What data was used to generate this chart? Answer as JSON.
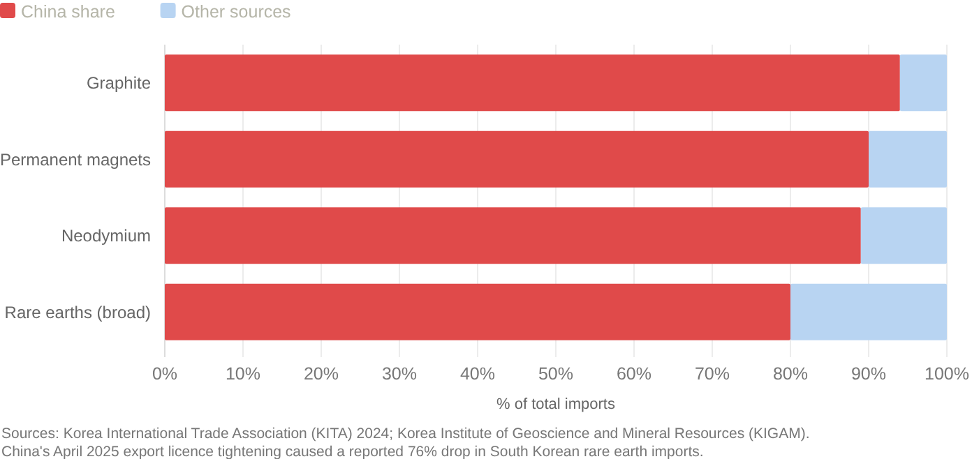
{
  "chart_data": {
    "type": "bar",
    "orientation": "horizontal",
    "stacked": true,
    "categories": [
      "Graphite",
      "Permanent magnets",
      "Neodymium",
      "Rare earths (broad)"
    ],
    "series": [
      {
        "name": "China share",
        "color": "#e04a4a",
        "values": [
          94,
          90,
          89,
          80
        ]
      },
      {
        "name": "Other sources",
        "color": "#b8d4f2",
        "values": [
          6,
          10,
          11,
          20
        ]
      }
    ],
    "xlim": [
      0,
      100
    ],
    "xticks": [
      {
        "value": 0,
        "label": "0%"
      },
      {
        "value": 10,
        "label": "10%"
      },
      {
        "value": 20,
        "label": "20%"
      },
      {
        "value": 30,
        "label": "30%"
      },
      {
        "value": 40,
        "label": "40%"
      },
      {
        "value": 50,
        "label": "50%"
      },
      {
        "value": 60,
        "label": "60%"
      },
      {
        "value": 70,
        "label": "70%"
      },
      {
        "value": 80,
        "label": "80%"
      },
      {
        "value": 90,
        "label": "90%"
      },
      {
        "value": 100,
        "label": "100%"
      }
    ],
    "xlabel": "% of total imports",
    "grid": "x",
    "legend": "top left",
    "annotations": [
      "Sources: Korea International Trade Association (KITA) 2024; Korea Institute of Geoscience and Mineral Resources (KIGAM).",
      "China's April 2025 export licence tightening caused a reported 76% drop in South Korean rare earth imports."
    ]
  }
}
